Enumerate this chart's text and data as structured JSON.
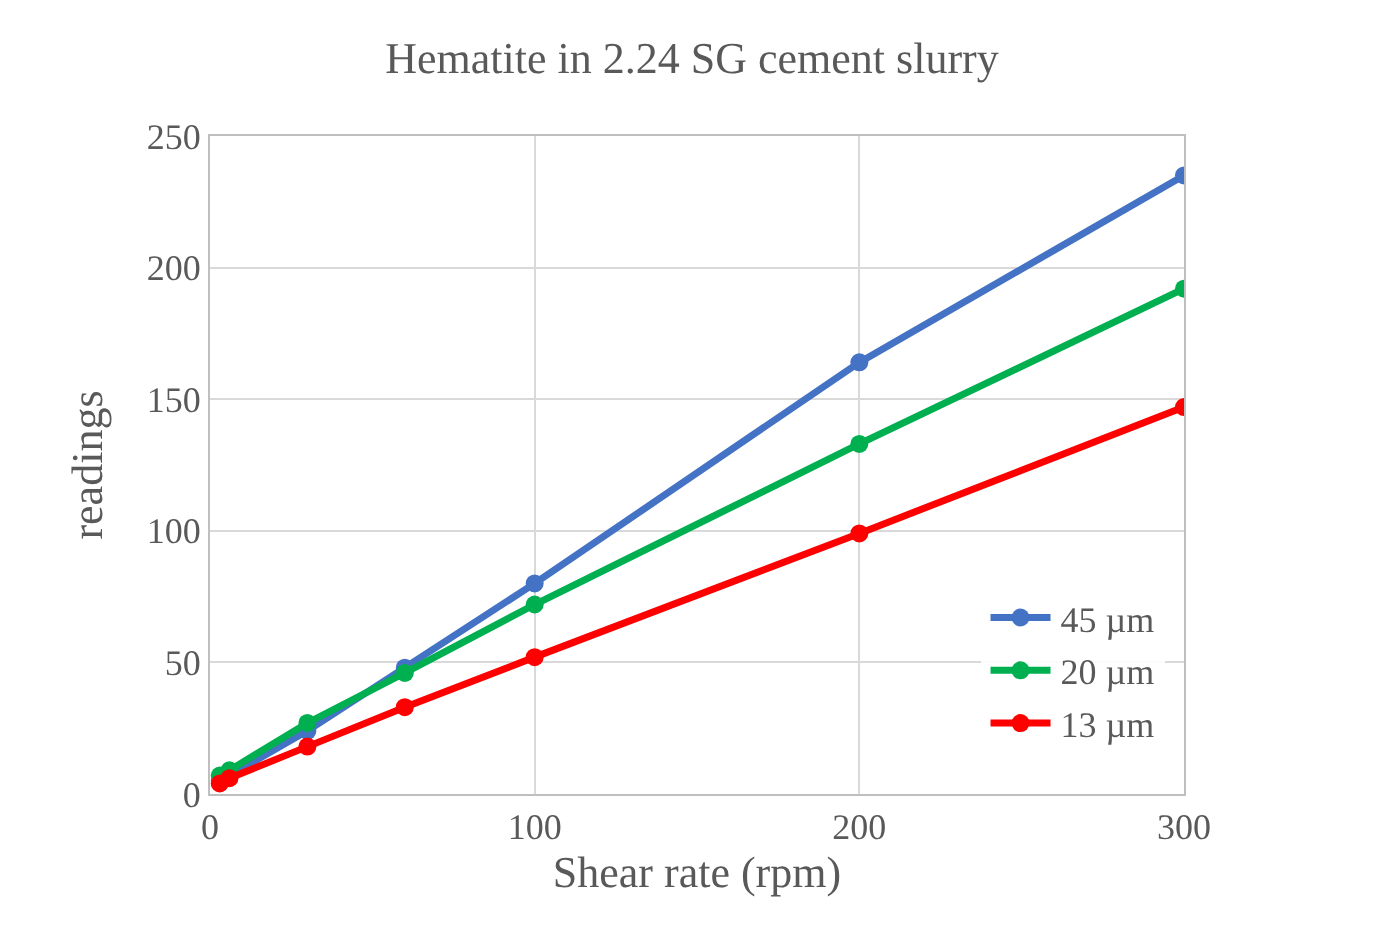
{
  "chart_data": {
    "type": "line",
    "title": "Hematite in 2.24 SG cement slurry",
    "xlabel": "Shear rate (rpm)",
    "ylabel": "readings",
    "x": [
      3,
      6,
      30,
      60,
      100,
      200,
      300
    ],
    "series": [
      {
        "name": "45 µm",
        "color": "#4472c4",
        "values": [
          5,
          7,
          24,
          48,
          80,
          164,
          235
        ]
      },
      {
        "name": "20 µm",
        "color": "#00b050",
        "values": [
          7,
          9,
          27,
          46,
          72,
          133,
          192
        ]
      },
      {
        "name": "13 µm",
        "color": "#ff0000",
        "values": [
          4,
          6,
          18,
          33,
          52,
          99,
          147
        ]
      }
    ],
    "xlim": [
      0,
      300
    ],
    "xticks": [
      0,
      100,
      200,
      300
    ],
    "ylim": [
      0,
      250
    ],
    "yticks": [
      0,
      50,
      100,
      150,
      200,
      250
    ],
    "grid": true,
    "legend": "bottom right",
    "marker": "circle",
    "line_style": "solid"
  }
}
